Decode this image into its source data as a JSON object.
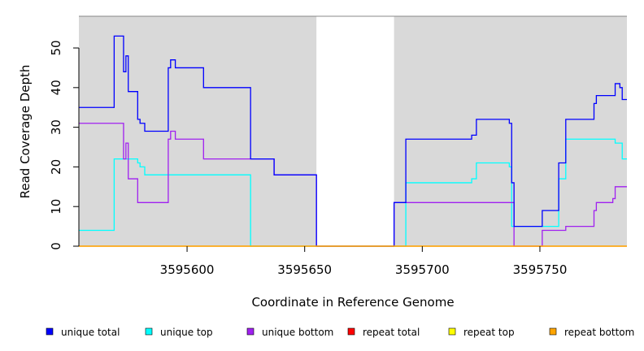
{
  "chart_data": {
    "type": "line",
    "title": "",
    "xlabel": "Coordinate in Reference Genome",
    "ylabel": "Read Coverage Depth",
    "xlim": [
      3595554,
      3595787
    ],
    "ylim": [
      0,
      58
    ],
    "x_ticks": [
      3595600,
      3595650,
      3595700,
      3595750
    ],
    "y_ticks": [
      0,
      10,
      20,
      30,
      40,
      50
    ],
    "x_tick_labels": [
      "3595600",
      "3595650",
      "3595700",
      "3595750"
    ],
    "y_tick_labels": [
      "0",
      "10",
      "20",
      "30",
      "40",
      "50"
    ],
    "background": "#d9d9d9",
    "shaded_regions": [
      [
        3595554,
        3595655
      ],
      [
        3595688,
        3595787
      ]
    ],
    "grid": false,
    "legend_position": "bottom",
    "series": [
      {
        "name": "unique total",
        "color": "#0000ff",
        "points": [
          [
            3595554,
            35
          ],
          [
            3595569,
            35
          ],
          [
            3595569,
            53
          ],
          [
            3595573,
            53
          ],
          [
            3595573,
            44
          ],
          [
            3595574,
            44
          ],
          [
            3595574,
            48
          ],
          [
            3595575,
            48
          ],
          [
            3595575,
            39
          ],
          [
            3595579,
            39
          ],
          [
            3595579,
            32
          ],
          [
            3595580,
            32
          ],
          [
            3595580,
            31
          ],
          [
            3595582,
            31
          ],
          [
            3595582,
            29
          ],
          [
            3595592,
            29
          ],
          [
            3595592,
            45
          ],
          [
            3595593,
            45
          ],
          [
            3595593,
            47
          ],
          [
            3595595,
            47
          ],
          [
            3595595,
            45
          ],
          [
            3595607,
            45
          ],
          [
            3595607,
            40
          ],
          [
            3595627,
            40
          ],
          [
            3595627,
            22
          ],
          [
            3595637,
            22
          ],
          [
            3595637,
            18
          ],
          [
            3595655,
            18
          ],
          [
            3595655,
            0
          ],
          [
            3595688,
            0
          ],
          [
            3595688,
            11
          ],
          [
            3595693,
            11
          ],
          [
            3595693,
            27
          ],
          [
            3595721,
            27
          ],
          [
            3595721,
            28
          ],
          [
            3595723,
            28
          ],
          [
            3595723,
            32
          ],
          [
            3595737,
            32
          ],
          [
            3595737,
            31
          ],
          [
            3595738,
            31
          ],
          [
            3595738,
            16
          ],
          [
            3595739,
            16
          ],
          [
            3595739,
            5
          ],
          [
            3595751,
            5
          ],
          [
            3595751,
            9
          ],
          [
            3595758,
            9
          ],
          [
            3595758,
            21
          ],
          [
            3595761,
            21
          ],
          [
            3595761,
            32
          ],
          [
            3595773,
            32
          ],
          [
            3595773,
            36
          ],
          [
            3595774,
            36
          ],
          [
            3595774,
            38
          ],
          [
            3595782,
            38
          ],
          [
            3595782,
            41
          ],
          [
            3595784,
            41
          ],
          [
            3595784,
            40
          ],
          [
            3595785,
            40
          ],
          [
            3595785,
            37
          ],
          [
            3595787,
            37
          ]
        ]
      },
      {
        "name": "unique top",
        "color": "#00ffff",
        "points": [
          [
            3595554,
            4
          ],
          [
            3595569,
            4
          ],
          [
            3595569,
            22
          ],
          [
            3595579,
            22
          ],
          [
            3595579,
            21
          ],
          [
            3595580,
            21
          ],
          [
            3595580,
            20
          ],
          [
            3595582,
            20
          ],
          [
            3595582,
            18
          ],
          [
            3595627,
            18
          ],
          [
            3595627,
            0
          ],
          [
            3595688,
            0
          ],
          [
            3595693,
            0
          ],
          [
            3595693,
            16
          ],
          [
            3595721,
            16
          ],
          [
            3595721,
            17
          ],
          [
            3595723,
            17
          ],
          [
            3595723,
            21
          ],
          [
            3595737,
            21
          ],
          [
            3595737,
            20
          ],
          [
            3595738,
            20
          ],
          [
            3595738,
            5
          ],
          [
            3595758,
            5
          ],
          [
            3595758,
            17
          ],
          [
            3595761,
            17
          ],
          [
            3595761,
            27
          ],
          [
            3595782,
            27
          ],
          [
            3595782,
            26
          ],
          [
            3595785,
            26
          ],
          [
            3595785,
            22
          ],
          [
            3595787,
            22
          ]
        ]
      },
      {
        "name": "unique bottom",
        "color": "#a020f0",
        "points": [
          [
            3595554,
            31
          ],
          [
            3595573,
            31
          ],
          [
            3595573,
            22
          ],
          [
            3595574,
            22
          ],
          [
            3595574,
            26
          ],
          [
            3595575,
            26
          ],
          [
            3595575,
            17
          ],
          [
            3595579,
            17
          ],
          [
            3595579,
            11
          ],
          [
            3595592,
            11
          ],
          [
            3595592,
            27
          ],
          [
            3595593,
            27
          ],
          [
            3595593,
            29
          ],
          [
            3595595,
            29
          ],
          [
            3595595,
            27
          ],
          [
            3595607,
            27
          ],
          [
            3595607,
            22
          ],
          [
            3595637,
            22
          ],
          [
            3595637,
            18
          ],
          [
            3595655,
            18
          ],
          [
            3595655,
            0
          ],
          [
            3595688,
            0
          ],
          [
            3595688,
            11
          ],
          [
            3595739,
            11
          ],
          [
            3595739,
            0
          ],
          [
            3595751,
            0
          ],
          [
            3595751,
            4
          ],
          [
            3595761,
            4
          ],
          [
            3595761,
            5
          ],
          [
            3595773,
            5
          ],
          [
            3595773,
            9
          ],
          [
            3595774,
            9
          ],
          [
            3595774,
            11
          ],
          [
            3595781,
            11
          ],
          [
            3595781,
            12
          ],
          [
            3595782,
            12
          ],
          [
            3595782,
            15
          ],
          [
            3595787,
            15
          ]
        ]
      },
      {
        "name": "repeat total",
        "color": "#ff0000",
        "points": [
          [
            3595554,
            0
          ],
          [
            3595787,
            0
          ]
        ]
      },
      {
        "name": "repeat top",
        "color": "#ffff00",
        "points": [
          [
            3595554,
            0
          ],
          [
            3595787,
            0
          ]
        ]
      },
      {
        "name": "repeat bottom",
        "color": "#ffa500",
        "points": [
          [
            3595554,
            0
          ],
          [
            3595787,
            0
          ]
        ]
      }
    ]
  }
}
